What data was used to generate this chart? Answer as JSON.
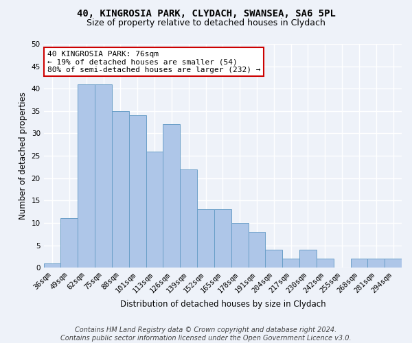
{
  "title1": "40, KINGROSIA PARK, CLYDACH, SWANSEA, SA6 5PL",
  "title2": "Size of property relative to detached houses in Clydach",
  "xlabel": "Distribution of detached houses by size in Clydach",
  "ylabel": "Number of detached properties",
  "categories": [
    "36sqm",
    "49sqm",
    "62sqm",
    "75sqm",
    "88sqm",
    "101sqm",
    "113sqm",
    "126sqm",
    "139sqm",
    "152sqm",
    "165sqm",
    "178sqm",
    "191sqm",
    "204sqm",
    "217sqm",
    "230sqm",
    "242sqm",
    "255sqm",
    "268sqm",
    "281sqm",
    "294sqm"
  ],
  "values": [
    1,
    11,
    41,
    41,
    35,
    34,
    26,
    32,
    22,
    13,
    13,
    10,
    8,
    4,
    2,
    4,
    2,
    0,
    2,
    2,
    2
  ],
  "bar_color": "#aec6e8",
  "bar_edge_color": "#6a9fc8",
  "highlight_text_line1": "40 KINGROSIA PARK: 76sqm",
  "highlight_text_line2": "← 19% of detached houses are smaller (54)",
  "highlight_text_line3": "80% of semi-detached houses are larger (232) →",
  "annotation_box_color": "#ffffff",
  "annotation_box_edge": "#cc0000",
  "footer1": "Contains HM Land Registry data © Crown copyright and database right 2024.",
  "footer2": "Contains public sector information licensed under the Open Government Licence v3.0.",
  "ylim": [
    0,
    50
  ],
  "yticks": [
    0,
    5,
    10,
    15,
    20,
    25,
    30,
    35,
    40,
    45,
    50
  ],
  "bg_color": "#eef2f9",
  "plot_bg_color": "#eef2f9",
  "grid_color": "#ffffff",
  "title1_fontsize": 10,
  "title2_fontsize": 9,
  "axis_label_fontsize": 8.5,
  "tick_fontsize": 7.5,
  "annotation_fontsize": 8,
  "footer_fontsize": 7
}
